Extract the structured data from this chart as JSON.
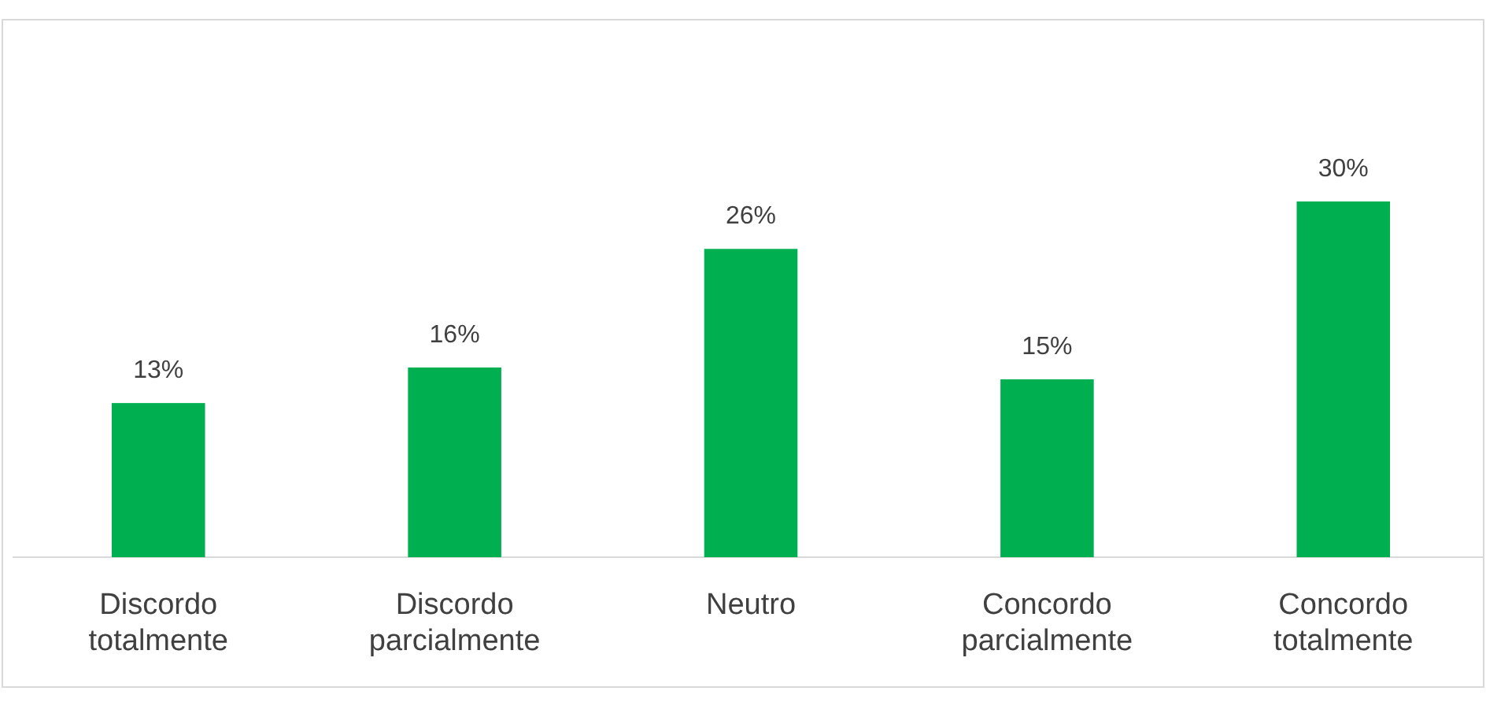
{
  "chart_data": {
    "type": "bar",
    "categories": [
      "Discordo totalmente",
      "Discordo parcialmente",
      "Neutro",
      "Concordo parcialmente",
      "Concordo totalmente"
    ],
    "values": [
      13,
      16,
      26,
      15,
      30
    ],
    "value_labels": [
      "13%",
      "16%",
      "26%",
      "15%",
      "30%"
    ],
    "color": "#00b050"
  }
}
